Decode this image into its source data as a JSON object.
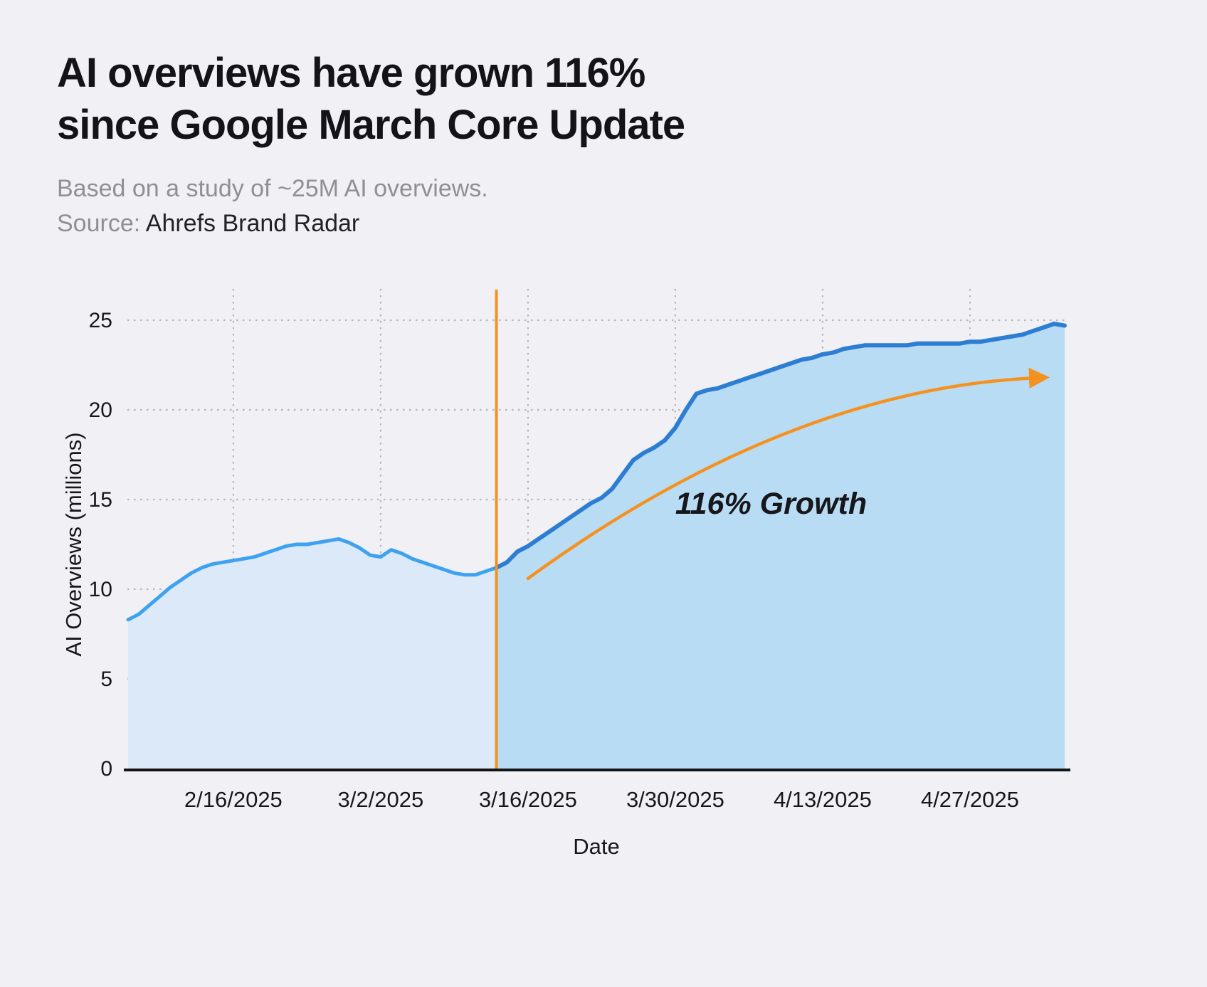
{
  "header": {
    "title_line1": "AI overviews have grown 116%",
    "title_line2": "since Google March Core Update",
    "subtitle": "Based on a study of ~25M AI overviews.",
    "source_label": "Source:",
    "source_value": "Ahrefs Brand Radar"
  },
  "chart_data": {
    "type": "area",
    "title": "AI overviews have grown 116% since Google March Core Update",
    "xlabel": "Date",
    "ylabel": "AI Overviews (millions)",
    "ylim": [
      0,
      25
    ],
    "yticks": [
      0,
      5,
      10,
      15,
      20,
      25
    ],
    "xtick_labels": [
      "2/16/2025",
      "3/2/2025",
      "3/16/2025",
      "3/30/2025",
      "4/13/2025",
      "4/27/2025"
    ],
    "grid": "dotted",
    "legend": "none",
    "event_line": {
      "date": "3/13/2025"
    },
    "annotation": {
      "text": "116% Growth",
      "label_anchor": {
        "date": "3/30/2025",
        "value": 14.2
      },
      "arrow_start": {
        "date": "3/16/2025",
        "value": 10.6
      },
      "arrow_control": {
        "date": "4/10/2025",
        "value": 21.3
      },
      "arrow_end": {
        "date": "5/4/2025",
        "value": 21.8
      }
    },
    "series": [
      {
        "name": "AI Overviews",
        "x": [
          "2/6/2025",
          "2/7/2025",
          "2/8/2025",
          "2/9/2025",
          "2/10/2025",
          "2/11/2025",
          "2/12/2025",
          "2/13/2025",
          "2/14/2025",
          "2/15/2025",
          "2/16/2025",
          "2/17/2025",
          "2/18/2025",
          "2/19/2025",
          "2/20/2025",
          "2/21/2025",
          "2/22/2025",
          "2/23/2025",
          "2/24/2025",
          "2/25/2025",
          "2/26/2025",
          "2/27/2025",
          "2/28/2025",
          "3/1/2025",
          "3/2/2025",
          "3/3/2025",
          "3/4/2025",
          "3/5/2025",
          "3/6/2025",
          "3/7/2025",
          "3/8/2025",
          "3/9/2025",
          "3/10/2025",
          "3/11/2025",
          "3/12/2025",
          "3/13/2025",
          "3/14/2025",
          "3/15/2025",
          "3/16/2025",
          "3/17/2025",
          "3/18/2025",
          "3/19/2025",
          "3/20/2025",
          "3/21/2025",
          "3/22/2025",
          "3/23/2025",
          "3/24/2025",
          "3/25/2025",
          "3/26/2025",
          "3/27/2025",
          "3/28/2025",
          "3/29/2025",
          "3/30/2025",
          "3/31/2025",
          "4/1/2025",
          "4/2/2025",
          "4/3/2025",
          "4/4/2025",
          "4/5/2025",
          "4/6/2025",
          "4/7/2025",
          "4/8/2025",
          "4/9/2025",
          "4/10/2025",
          "4/11/2025",
          "4/12/2025",
          "4/13/2025",
          "4/14/2025",
          "4/15/2025",
          "4/16/2025",
          "4/17/2025",
          "4/18/2025",
          "4/19/2025",
          "4/20/2025",
          "4/21/2025",
          "4/22/2025",
          "4/23/2025",
          "4/24/2025",
          "4/25/2025",
          "4/26/2025",
          "4/27/2025",
          "4/28/2025",
          "4/29/2025",
          "4/30/2025",
          "5/1/2025",
          "5/2/2025",
          "5/3/2025",
          "5/4/2025",
          "5/5/2025",
          "5/6/2025"
        ],
        "y": [
          8.3,
          8.6,
          9.1,
          9.6,
          10.1,
          10.5,
          10.9,
          11.2,
          11.4,
          11.5,
          11.6,
          11.7,
          11.8,
          12.0,
          12.2,
          12.4,
          12.5,
          12.5,
          12.6,
          12.7,
          12.8,
          12.6,
          12.3,
          11.9,
          11.8,
          12.2,
          12.0,
          11.7,
          11.5,
          11.3,
          11.1,
          10.9,
          10.8,
          10.8,
          11.0,
          11.2,
          11.5,
          12.1,
          12.4,
          12.8,
          13.2,
          13.6,
          14.0,
          14.4,
          14.8,
          15.1,
          15.6,
          16.4,
          17.2,
          17.6,
          17.9,
          18.3,
          19.0,
          20.0,
          20.9,
          21.1,
          21.2,
          21.4,
          21.6,
          21.8,
          22.0,
          22.2,
          22.4,
          22.6,
          22.8,
          22.9,
          23.1,
          23.2,
          23.4,
          23.5,
          23.6,
          23.6,
          23.6,
          23.6,
          23.6,
          23.7,
          23.7,
          23.7,
          23.7,
          23.7,
          23.8,
          23.8,
          23.9,
          24.0,
          24.1,
          24.2,
          24.4,
          24.6,
          24.8,
          24.7
        ]
      }
    ],
    "colors": {
      "background": "#f1f0f5",
      "line_pre": "#3ea2f0",
      "line_post": "#2d7dd2",
      "fill_pre": "#dbe9f8",
      "fill_post": "#b9dcf5",
      "accent": "#f5921f",
      "grid": "#b6b6c0",
      "axis": "#141418",
      "text": "#17171b",
      "muted": "#8f8f96"
    }
  }
}
